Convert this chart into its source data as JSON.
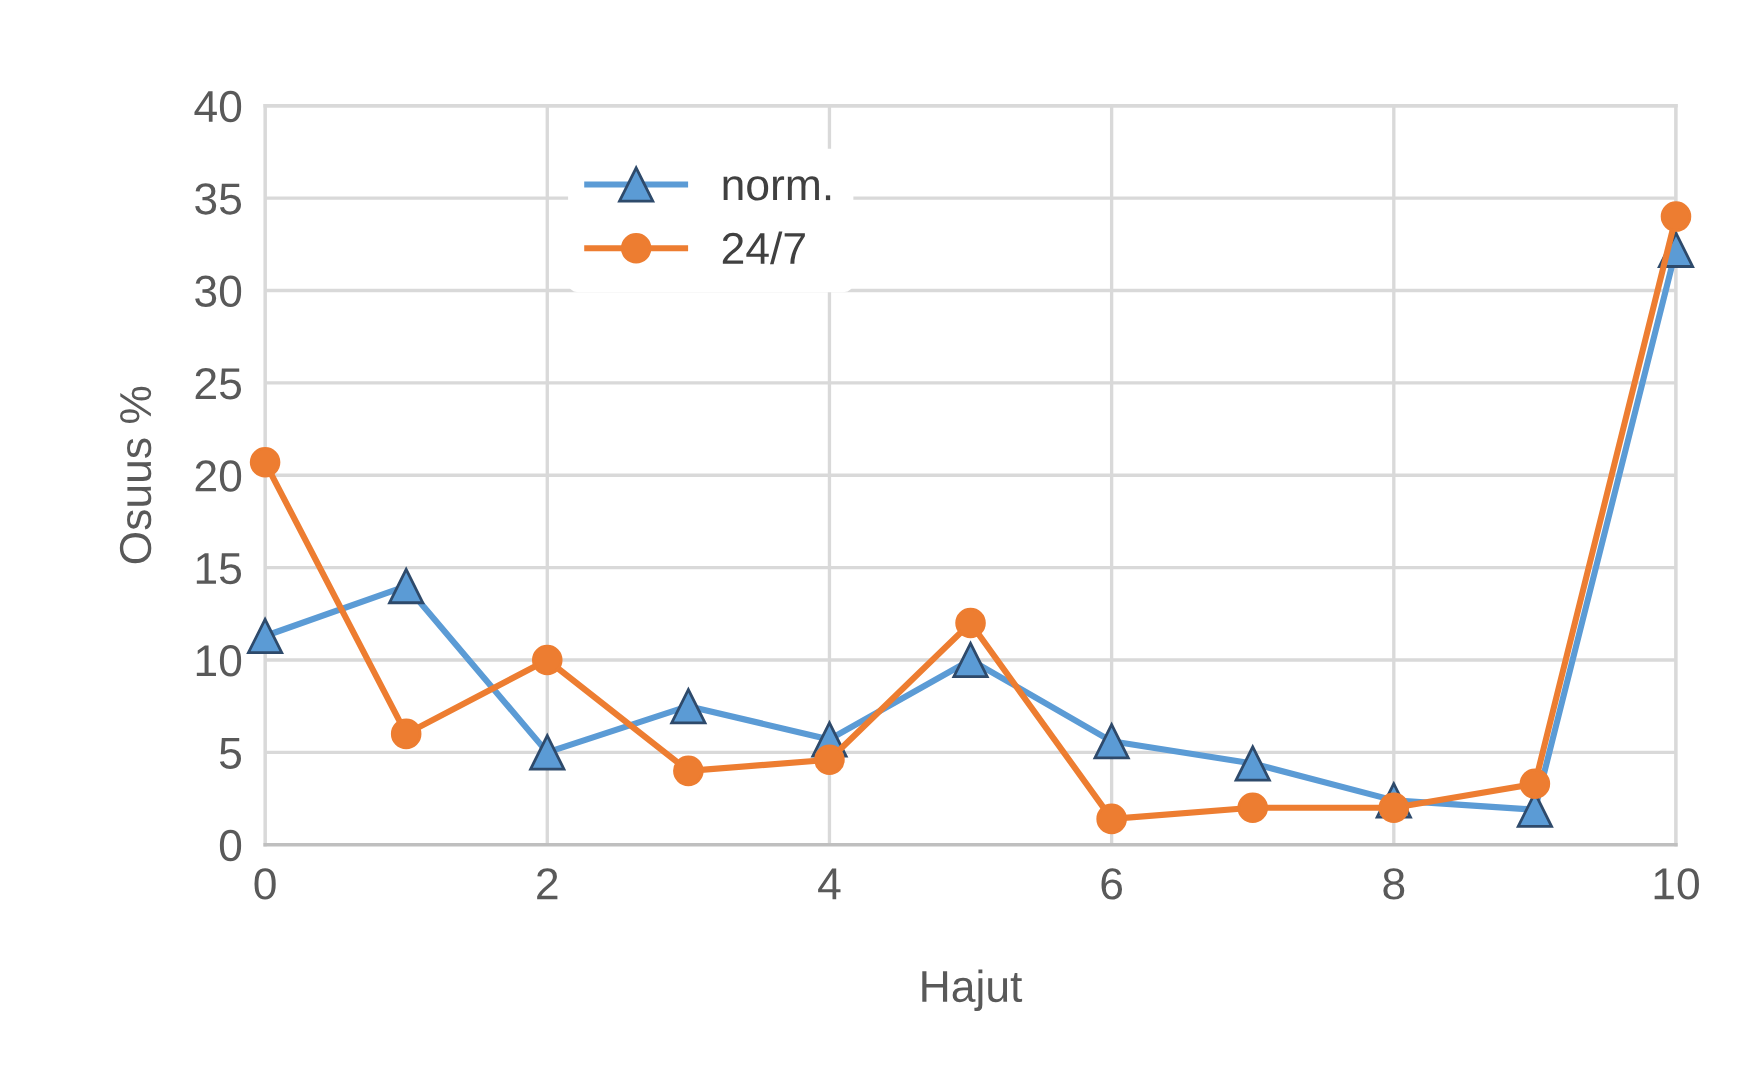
{
  "chart_data": {
    "type": "line",
    "xlabel": "Hajut",
    "ylabel": "Osuus %",
    "x": [
      0,
      1,
      2,
      3,
      4,
      5,
      6,
      7,
      8,
      9,
      10
    ],
    "series": [
      {
        "name": "norm.",
        "color": "#5b9bd5",
        "marker": "triangle",
        "values": [
          11.3,
          14.0,
          5.0,
          7.5,
          5.7,
          10.0,
          5.6,
          4.4,
          2.4,
          1.9,
          32.2
        ]
      },
      {
        "name": "24/7",
        "color": "#ed7d31",
        "marker": "circle",
        "values": [
          20.7,
          6.0,
          10.0,
          4.0,
          4.6,
          12.0,
          1.4,
          2.0,
          2.0,
          3.3,
          34.0
        ]
      }
    ],
    "xlim": [
      0,
      10
    ],
    "xticks": [
      0,
      2,
      4,
      6,
      8,
      10
    ],
    "ylim": [
      0,
      40
    ],
    "yticks": [
      0,
      5,
      10,
      15,
      20,
      25,
      30,
      35,
      40
    ],
    "grid": true,
    "legend": "top",
    "line_style": "solid"
  }
}
